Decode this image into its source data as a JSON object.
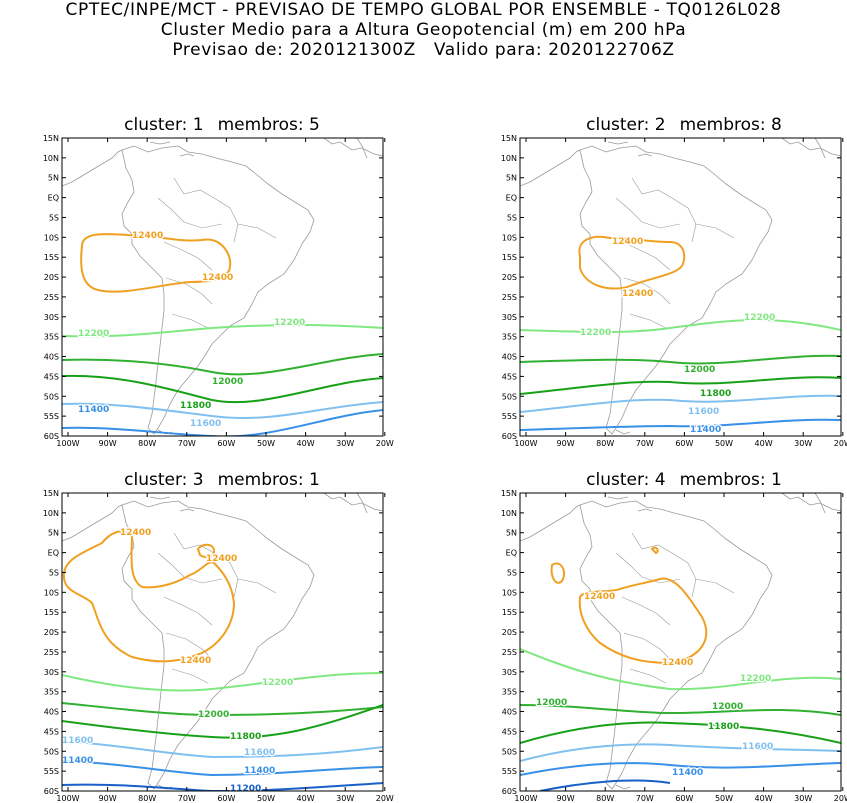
{
  "header": {
    "line1": "CPTEC/INPE/MCT - PREVISAO DE TEMPO GLOBAL POR ENSEMBLE - TQ0126L028",
    "line2": "Cluster Medio para a Altura Geopotencial (m) em 200 hPa",
    "line3_label_a": "Previsao de:",
    "line3_value_a": "2020121300Z",
    "line3_label_b": "Valido para:",
    "line3_value_b": "2020122706Z"
  },
  "axes": {
    "lat_ticks": [
      "15N",
      "10N",
      "5N",
      "EQ",
      "5S",
      "10S",
      "15S",
      "20S",
      "25S",
      "30S",
      "35S",
      "40S",
      "45S",
      "50S",
      "55S",
      "60S"
    ],
    "lon_ticks": [
      "100W",
      "90W",
      "80W",
      "70W",
      "60W",
      "50W",
      "40W",
      "30W",
      "20W"
    ]
  },
  "colors": {
    "c12400": "#f0a020",
    "c12200": "#80e880",
    "c12000": "#30b030",
    "c11800": "#18a018",
    "c11600": "#80c0f0",
    "c11400": "#3890e8",
    "c11200": "#1860c8",
    "coast": "#9a9a9a"
  },
  "panels": [
    {
      "title_cluster": "cluster: 1",
      "title_membros": "membros: 5",
      "labels": [
        "12400",
        "12400",
        "12200",
        "12200",
        "12000",
        "11800",
        "11600",
        "11400"
      ]
    },
    {
      "title_cluster": "cluster: 2",
      "title_membros": "membros: 8",
      "labels": [
        "12400",
        "12400",
        "12200",
        "12200",
        "12000",
        "11800",
        "11600",
        "11400"
      ]
    },
    {
      "title_cluster": "cluster: 3",
      "title_membros": "membros: 1",
      "labels": [
        "12400",
        "12400",
        "12400",
        "12200",
        "12000",
        "11800",
        "11600",
        "11600",
        "11400",
        "11400",
        "11200"
      ]
    },
    {
      "title_cluster": "cluster: 4",
      "title_membros": "membros: 1",
      "labels": [
        "12400",
        "12400",
        "12200",
        "12000",
        "12000",
        "11800",
        "11600",
        "11400"
      ]
    }
  ]
}
